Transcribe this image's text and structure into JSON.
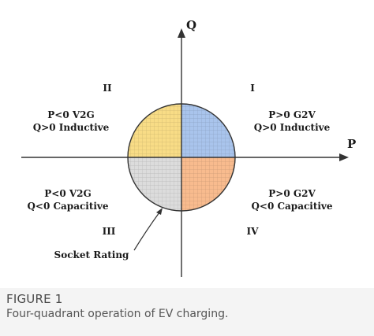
{
  "diagram": {
    "axis_p_label": "P",
    "axis_q_label": "Q",
    "quadrants": [
      {
        "numeral": "I",
        "line1": "P>0  G2V",
        "line2": "Q>0 Inductive",
        "color": "#a9c4ec"
      },
      {
        "numeral": "II",
        "line1": "P<0  V2G",
        "line2": "Q>0 Inductive",
        "color": "#f8dc86"
      },
      {
        "numeral": "III",
        "line1": "P<0  V2G",
        "line2": "Q<0 Capacitive",
        "color": "#dcdcdc"
      },
      {
        "numeral": "IV",
        "line1": "P>0  G2V",
        "line2": "Q<0 Capacitive",
        "color": "#f8bb8e"
      }
    ],
    "socket_label": "Socket Rating"
  },
  "caption": {
    "label": "FIGURE 1",
    "text": "Four-quadrant operation of EV charging."
  }
}
